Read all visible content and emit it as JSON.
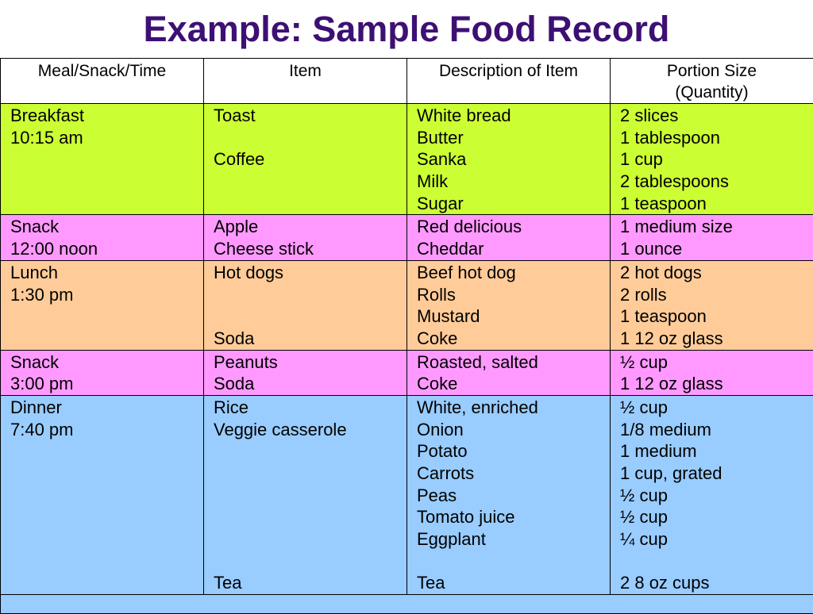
{
  "title": "Example: Sample Food Record",
  "colors": {
    "title": "#3d1074",
    "breakfast": "#ccff33",
    "snack": "#ff99ff",
    "lunch": "#ffcc99",
    "dinner": "#99ccff"
  },
  "headers": [
    [
      "Meal/Snack/Time"
    ],
    [
      "Item"
    ],
    [
      "Description of Item"
    ],
    [
      "Portion Size",
      "(Quantity)"
    ]
  ],
  "rows": [
    {
      "meal": "breakfast",
      "color": "#ccff33",
      "cells": [
        [
          "Breakfast",
          "10:15 am",
          "",
          "",
          ""
        ],
        [
          "Toast",
          "",
          "Coffee",
          "",
          ""
        ],
        [
          "White bread",
          "Butter",
          "Sanka",
          "Milk",
          "Sugar"
        ],
        [
          "2 slices",
          "1 tablespoon",
          "1 cup",
          "2 tablespoons",
          "1 teaspoon"
        ]
      ]
    },
    {
      "meal": "snack-1",
      "color": "#ff99ff",
      "cells": [
        [
          "Snack",
          "12:00 noon"
        ],
        [
          "Apple",
          "Cheese stick"
        ],
        [
          "Red delicious",
          "Cheddar"
        ],
        [
          "1 medium size",
          "1 ounce"
        ]
      ]
    },
    {
      "meal": "lunch",
      "color": "#ffcc99",
      "cells": [
        [
          "Lunch",
          "1:30 pm",
          "",
          ""
        ],
        [
          "Hot dogs",
          "",
          "",
          "Soda"
        ],
        [
          "Beef hot dog",
          "Rolls",
          "Mustard",
          "Coke"
        ],
        [
          "2 hot dogs",
          "2 rolls",
          "1 teaspoon",
          "1 12 oz glass"
        ]
      ]
    },
    {
      "meal": "snack-2",
      "color": "#ff99ff",
      "cells": [
        [
          "Snack",
          "3:00 pm"
        ],
        [
          "Peanuts",
          "Soda"
        ],
        [
          "Roasted, salted",
          "Coke"
        ],
        [
          "½ cup",
          "1 12 oz glass"
        ]
      ]
    },
    {
      "meal": "dinner",
      "color": "#99ccff",
      "cells": [
        [
          "Dinner",
          "7:40 pm",
          "",
          "",
          "",
          "",
          "",
          "",
          ""
        ],
        [
          "Rice",
          "Veggie casserole",
          "",
          "",
          "",
          "",
          "",
          "",
          "Tea"
        ],
        [
          "White, enriched",
          "Onion",
          "Potato",
          "Carrots",
          "Peas",
          "Tomato juice",
          "Eggplant",
          "",
          "Tea"
        ],
        [
          "½ cup",
          "1/8 medium",
          "1 medium",
          "1 cup, grated",
          "½ cup",
          "½ cup",
          "¼ cup",
          "",
          "2 8 oz cups"
        ]
      ]
    }
  ]
}
